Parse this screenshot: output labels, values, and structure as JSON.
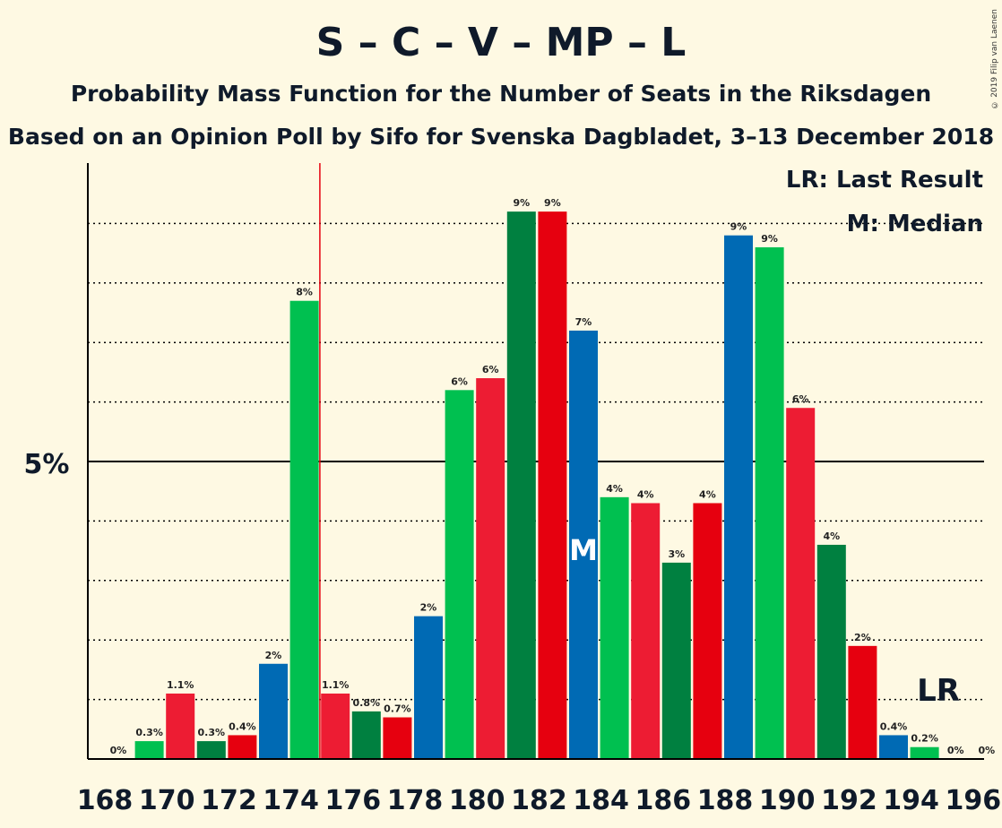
{
  "chart_data": {
    "type": "bar",
    "title": "S – C – V – MP – L",
    "subtitle_1": "Probability Mass Function for the Number of Seats in the Riksdagen",
    "subtitle_2": "Based on an Opinion Poll by Sifo for Svenska Dagbladet, 3–13 December 2018",
    "copyright": "© 2019 Filip van Laenen",
    "y_tick_label": "5%",
    "legend": {
      "last_result": "LR: Last Result",
      "median": "M: Median"
    },
    "last_result_marker": "LR",
    "median_marker": "M",
    "last_result_seat": 175,
    "median_seat": 183,
    "ylim": [
      0,
      0.1
    ],
    "categories": [
      168,
      169,
      170,
      171,
      172,
      173,
      174,
      175,
      176,
      177,
      178,
      179,
      180,
      181,
      182,
      183,
      184,
      185,
      186,
      187,
      188,
      189,
      190,
      191,
      192,
      193,
      194,
      195,
      196
    ],
    "x_tick_labels": [
      "168",
      "170",
      "172",
      "174",
      "176",
      "178",
      "180",
      "182",
      "184",
      "186",
      "188",
      "190",
      "192",
      "194",
      "196"
    ],
    "values": [
      0.0,
      0.003,
      0.011,
      0.003,
      0.004,
      0.016,
      0.077,
      0.011,
      0.008,
      0.007,
      0.024,
      0.062,
      0.064,
      0.092,
      0.092,
      0.072,
      0.044,
      0.043,
      0.033,
      0.043,
      0.088,
      0.086,
      0.059,
      0.036,
      0.019,
      0.004,
      0.002,
      0.0,
      0.0
    ],
    "labels": [
      "0%",
      "0.3%",
      "1.1%",
      "0.3%",
      "0.4%",
      "2%",
      "8%",
      "1.1%",
      "0.8%",
      "0.7%",
      "2%",
      "6%",
      "6%",
      "9%",
      "9%",
      "7%",
      "4%",
      "4%",
      "3%",
      "4%",
      "9%",
      "9%",
      "6%",
      "4%",
      "2%",
      "0.4%",
      "0.2%",
      "0%",
      "0%"
    ],
    "colors": [
      "#006ab4",
      "#00c050",
      "#ed1c33",
      "#008040",
      "#e6000f"
    ]
  }
}
